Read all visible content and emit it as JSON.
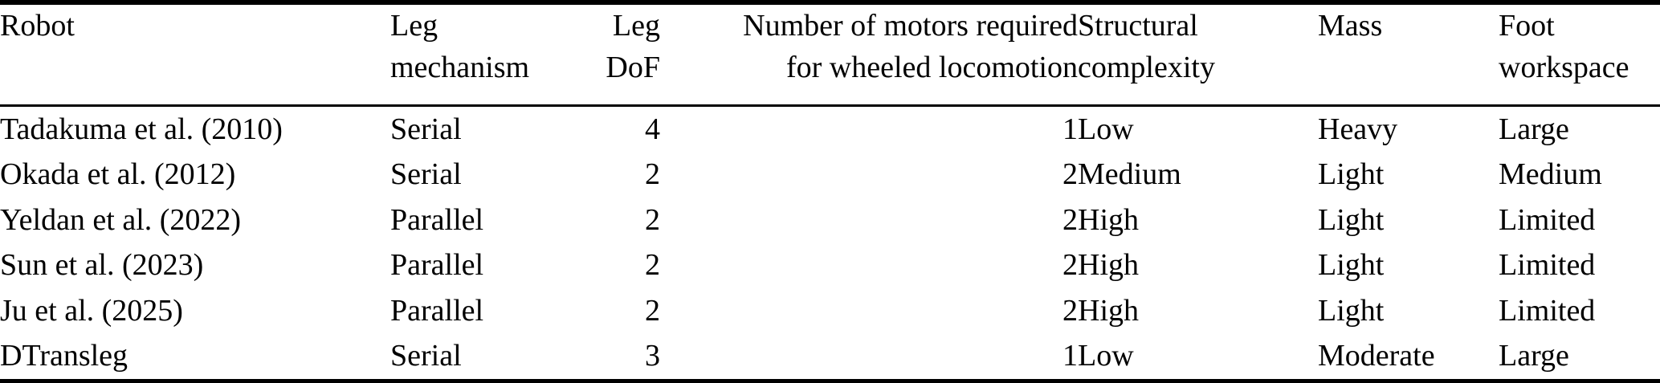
{
  "table": {
    "name": "robot-comparison-table",
    "columns": [
      {
        "id": "robot",
        "line1": "Robot",
        "line2": "",
        "align": "left"
      },
      {
        "id": "leg-mechanism",
        "line1": "Leg",
        "line2": "mechanism",
        "align": "left"
      },
      {
        "id": "leg-dof",
        "line1": "Leg",
        "line2": "DoF",
        "align": "right"
      },
      {
        "id": "motors-wheeled",
        "line1": "Number of motors required",
        "line2": "for wheeled locomotion",
        "align": "right"
      },
      {
        "id": "structural-complexity",
        "line1": "Structural",
        "line2": "complexity",
        "align": "left"
      },
      {
        "id": "mass",
        "line1": "Mass",
        "line2": "",
        "align": "left"
      },
      {
        "id": "foot-workspace",
        "line1": "Foot",
        "line2": "workspace",
        "align": "left"
      }
    ],
    "rows": [
      [
        "Tadakuma et al. (2010)",
        "Serial",
        "4",
        "1",
        "Low",
        "Heavy",
        "Large"
      ],
      [
        "Okada et al. (2012)",
        "Serial",
        "2",
        "2",
        "Medium",
        "Light",
        "Medium"
      ],
      [
        "Yeldan et al. (2022)",
        "Parallel",
        "2",
        "2",
        "High",
        "Light",
        "Limited"
      ],
      [
        "Sun et al. (2023)",
        "Parallel",
        "2",
        "2",
        "High",
        "Light",
        "Limited"
      ],
      [
        "Ju et al. (2025)",
        "Parallel",
        "2",
        "2",
        "High",
        "Light",
        "Limited"
      ],
      [
        "DTransleg",
        "Serial",
        "3",
        "1",
        "Low",
        "Moderate",
        "Large"
      ]
    ]
  },
  "colors": {
    "text": "#000000",
    "background": "#ffffff",
    "rule": "#000000"
  }
}
